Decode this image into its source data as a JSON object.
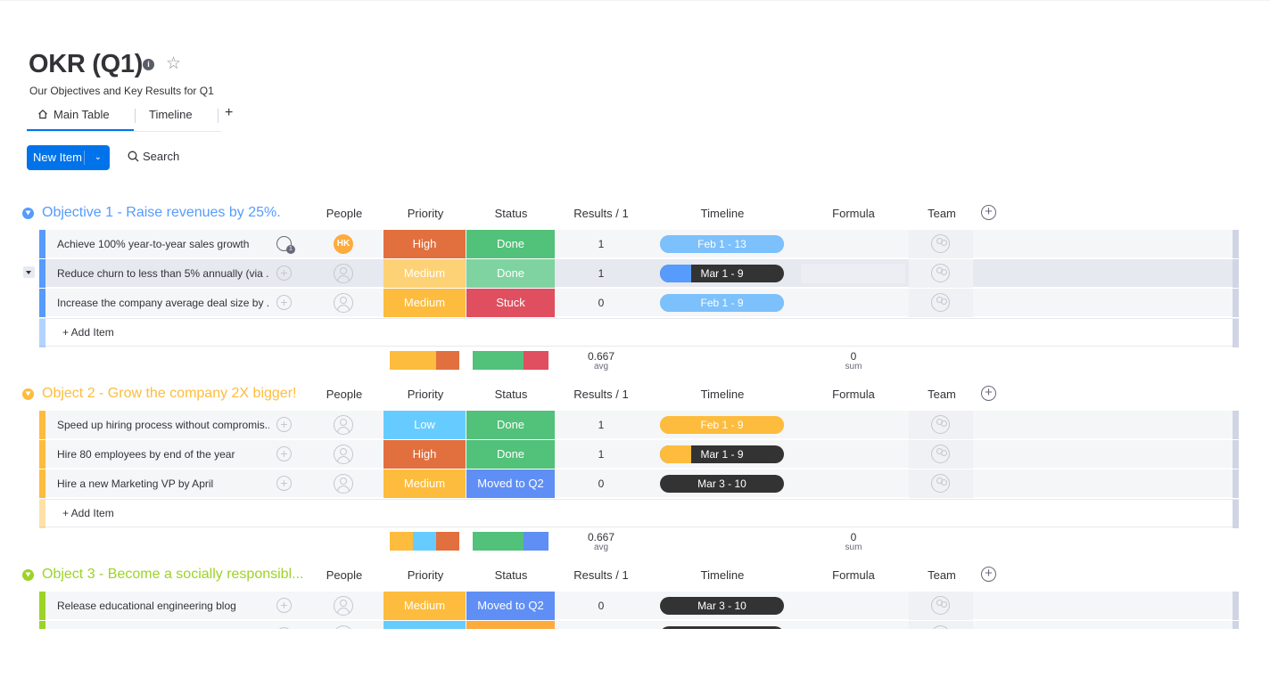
{
  "board": {
    "title": "OKR (Q1)",
    "description": "Our Objectives and Key Results for Q1"
  },
  "tabs": [
    {
      "label": "Main Table",
      "icon": "home-icon",
      "active": true
    },
    {
      "label": "Timeline",
      "active": false
    }
  ],
  "tab_add": "+",
  "toolbar": {
    "new_item_label": "New Item",
    "search_label": "Search"
  },
  "columns": {
    "people": "People",
    "priority": "Priority",
    "status": "Status",
    "results": "Results / 1",
    "timeline": "Timeline",
    "formula": "Formula",
    "team": "Team"
  },
  "colors": {
    "blue_group": "#579bfc",
    "yellow_group": "#fdab3d",
    "green_group": "#9cd326",
    "high": "#e2703f",
    "medium": "#fdbc3d",
    "low": "#66ccff",
    "done": "#52c17a",
    "stuck": "#df4f5f",
    "moved": "#5f8ff4",
    "timeline_dark": "#333333"
  },
  "groups": [
    {
      "name": "Objective 1 - Raise revenues by 25%.",
      "color": "#579bfc",
      "items": [
        {
          "name": "Achieve 100% year-to-year sales growth",
          "person": "HK",
          "priority": "High",
          "priority_color": "#e2703f",
          "status": "Done",
          "status_color": "#52c17a",
          "result": "1",
          "timeline": "Feb 1 - 13",
          "timeline_progress": 1.0,
          "timeline_fill": "#7cc0fc",
          "timeline_bg": "#7cc0fc",
          "timeline_text_color": "#ffffff",
          "has_updates": true
        },
        {
          "name": "Reduce churn to less than 5% annually (via ...",
          "person": "",
          "priority": "Medium",
          "priority_color": "#fdd176",
          "status": "Done",
          "status_color": "#7fd3a0",
          "result": "1",
          "timeline": "Mar 1 - 9",
          "timeline_progress": 0.25,
          "timeline_fill": "#579bfc",
          "timeline_bg": "#333333",
          "timeline_text_color": "#ffffff",
          "has_updates": false,
          "hovered": true
        },
        {
          "name": "Increase the company average deal size by ...",
          "person": "",
          "priority": "Medium",
          "priority_color": "#fdbc3d",
          "status": "Stuck",
          "status_color": "#df4f5f",
          "result": "0",
          "timeline": "Feb 1 - 9",
          "timeline_progress": 1.0,
          "timeline_fill": "#7cc0fc",
          "timeline_bg": "#7cc0fc",
          "timeline_text_color": "#ffffff",
          "has_updates": false
        }
      ],
      "add_item": "+ Add Item",
      "summary": {
        "priority_bar": [
          {
            "color": "#fdbc3d",
            "weight": 2
          },
          {
            "color": "#e2703f",
            "weight": 1
          }
        ],
        "status_bar": [
          {
            "color": "#52c17a",
            "weight": 2
          },
          {
            "color": "#df4f5f",
            "weight": 1
          }
        ],
        "result_value": "0.667",
        "result_label": "avg",
        "formula_value": "0",
        "formula_label": "sum"
      }
    },
    {
      "name": "Object 2 - Grow the company 2X bigger!",
      "color": "#fdbc3d",
      "items": [
        {
          "name": "Speed up hiring process without compromis...",
          "person": "",
          "priority": "Low",
          "priority_color": "#66ccff",
          "status": "Done",
          "status_color": "#52c17a",
          "result": "1",
          "timeline": "Feb 1 - 9",
          "timeline_progress": 1.0,
          "timeline_fill": "#fdbc3d",
          "timeline_bg": "#fdbc3d",
          "timeline_text_color": "#ffffff",
          "has_updates": false
        },
        {
          "name": "Hire 80 employees by end of the year",
          "person": "",
          "priority": "High",
          "priority_color": "#e2703f",
          "status": "Done",
          "status_color": "#52c17a",
          "result": "1",
          "timeline": "Mar 1 - 9",
          "timeline_progress": 0.25,
          "timeline_fill": "#fdbc3d",
          "timeline_bg": "#333333",
          "timeline_text_color": "#ffffff",
          "has_updates": false
        },
        {
          "name": "Hire a new Marketing VP by April",
          "person": "",
          "priority": "Medium",
          "priority_color": "#fdbc3d",
          "status": "Moved to Q2",
          "status_color": "#5f8ff4",
          "result": "0",
          "timeline": "Mar 3 - 10",
          "timeline_progress": 0.0,
          "timeline_fill": "#fdbc3d",
          "timeline_bg": "#333333",
          "timeline_text_color": "#ffffff",
          "has_updates": false
        }
      ],
      "add_item": "+ Add Item",
      "summary": {
        "priority_bar": [
          {
            "color": "#fdbc3d",
            "weight": 1
          },
          {
            "color": "#66ccff",
            "weight": 1
          },
          {
            "color": "#e2703f",
            "weight": 1
          }
        ],
        "status_bar": [
          {
            "color": "#52c17a",
            "weight": 2
          },
          {
            "color": "#5f8ff4",
            "weight": 1
          }
        ],
        "result_value": "0.667",
        "result_label": "avg",
        "formula_value": "0",
        "formula_label": "sum"
      }
    },
    {
      "name": "Object 3 - Become a socially responsibl...",
      "color": "#9cd326",
      "items": [
        {
          "name": "Release educational engineering blog",
          "person": "",
          "priority": "Medium",
          "priority_color": "#fdbc3d",
          "status": "Moved to Q2",
          "status_color": "#5f8ff4",
          "result": "0",
          "timeline": "Mar 3 - 10",
          "timeline_progress": 0.0,
          "timeline_fill": "#9cd326",
          "timeline_bg": "#333333",
          "timeline_text_color": "#ffffff",
          "has_updates": false
        },
        {
          "name": "",
          "person": "",
          "priority": "",
          "priority_color": "#66ccff",
          "status": "",
          "status_color": "#fdab3d",
          "result": "",
          "timeline": "",
          "timeline_progress": 0.0,
          "timeline_fill": "#9cd326",
          "timeline_bg": "#333333",
          "timeline_text_color": "#ffffff",
          "has_updates": false
        }
      ]
    }
  ]
}
